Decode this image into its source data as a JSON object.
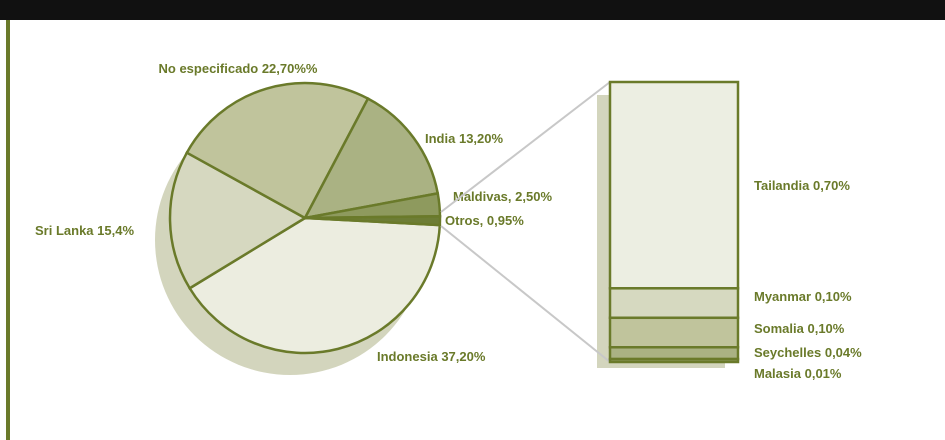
{
  "chart_data": {
    "type": "pie",
    "categories": [
      "Indonesia",
      "Sri Lanka",
      "No especificado",
      "India",
      "Maldivas,",
      "Otros,"
    ],
    "values": [
      37.2,
      15.4,
      22.7,
      13.2,
      2.5,
      0.95
    ],
    "value_labels": [
      "37,20%",
      "15,4%",
      "22,70%%",
      "13,20%",
      "2,50%",
      "0,95%"
    ],
    "colors": [
      "#ecede0",
      "#d6d8c0",
      "#c0c49c",
      "#aab283",
      "#8e9a5e",
      "#6d7d35"
    ],
    "breakdown": {
      "categories": [
        "Tailandia",
        "Myanmar",
        "Somalia",
        "Seychelles",
        "Malasia"
      ],
      "values": [
        0.7,
        0.1,
        0.1,
        0.04,
        0.01
      ],
      "value_labels": [
        "0,70%",
        "0,10%",
        "0,10%",
        "0,04%",
        "0,01%"
      ],
      "colors": [
        "#eceee2",
        "#d6d9c0",
        "#c0c49c",
        "#aab283",
        "#8e9a5e"
      ]
    }
  }
}
